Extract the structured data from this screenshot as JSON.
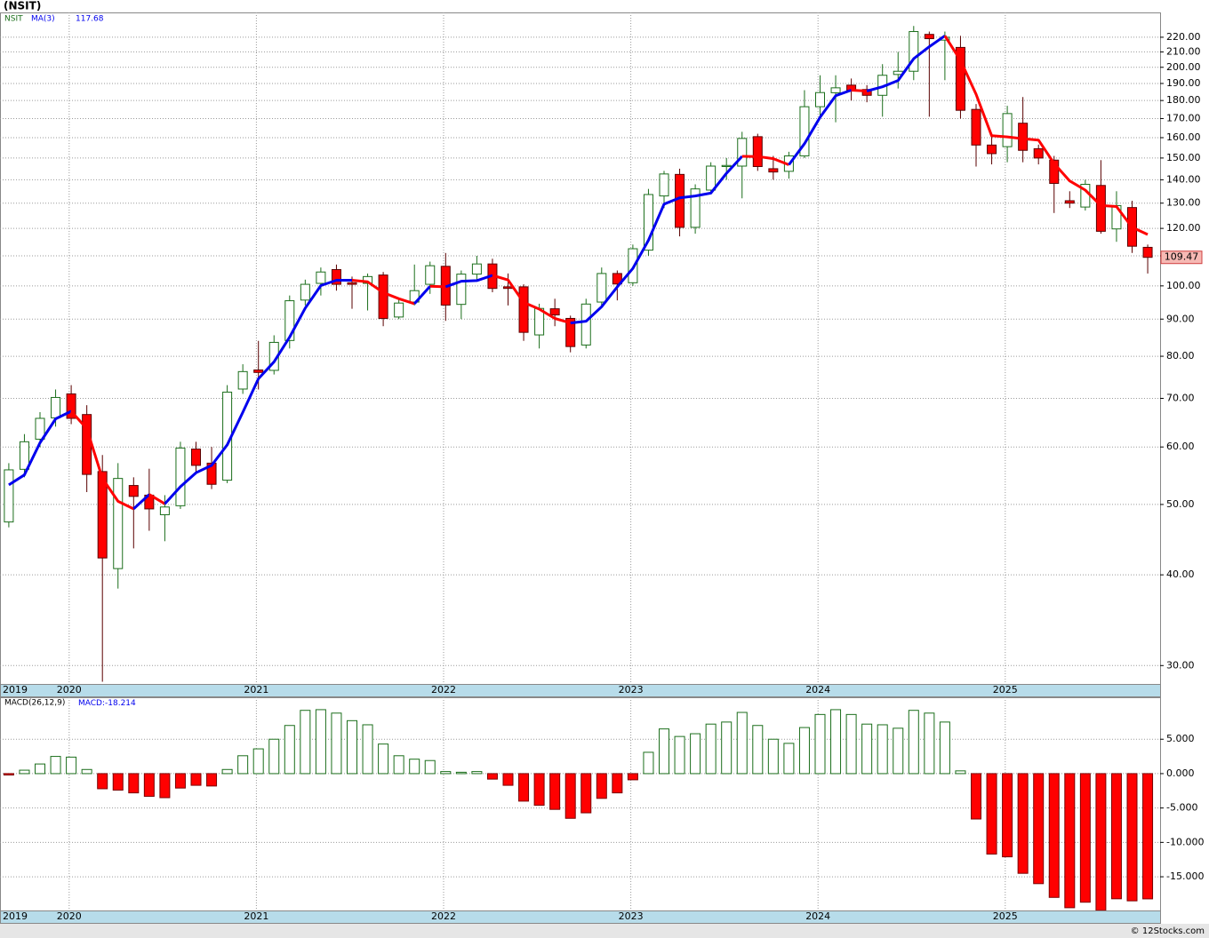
{
  "footer": "© 12Stocks.com",
  "chart_data": [
    {
      "type": "candlestick",
      "title": "(NSIT)",
      "symbol": "NSIT",
      "categories": [
        "2019",
        null,
        null,
        null,
        "2020",
        null,
        null,
        null,
        null,
        null,
        null,
        null,
        null,
        null,
        null,
        null,
        "2021",
        null,
        null,
        null,
        null,
        null,
        null,
        null,
        null,
        null,
        null,
        null,
        "2022",
        null,
        null,
        null,
        null,
        null,
        null,
        null,
        null,
        null,
        null,
        null,
        "2023",
        null,
        null,
        null,
        null,
        null,
        null,
        null,
        null,
        null,
        null,
        null,
        "2024",
        null,
        null,
        null,
        null,
        null,
        null,
        null,
        null,
        null,
        null,
        null,
        "2025",
        null,
        null,
        null,
        null,
        null,
        null,
        null,
        null,
        null
      ],
      "open": [
        47.3,
        55.9,
        61.5,
        65.8,
        71,
        66.5,
        55.5,
        40.8,
        53.1,
        51.5,
        48.4,
        49.8,
        59.6,
        57,
        54,
        72.1,
        76.6,
        76.5,
        84.1,
        95.6,
        100.8,
        105.3,
        101,
        100.8,
        103.5,
        90.6,
        95,
        100.5,
        106.4,
        94.3,
        103.8,
        107.2,
        99.7,
        99.7,
        85.6,
        93,
        90.2,
        82.9,
        95,
        104,
        101,
        112,
        133,
        142.4,
        120.4,
        135.5,
        146,
        146.2,
        160.5,
        145,
        143.8,
        151,
        176.5,
        184.5,
        189,
        186.4,
        183,
        195.5,
        197.5,
        222,
        218,
        213,
        175,
        156.3,
        155.5,
        167.5,
        154.5,
        149,
        131,
        128.4,
        137.5,
        119.8,
        128.2,
        113
      ],
      "high": [
        57,
        62.5,
        67,
        72,
        73,
        68.5,
        58.5,
        57,
        54.5,
        56,
        51.5,
        61,
        61,
        60,
        73,
        78,
        84,
        85.5,
        97,
        102,
        106,
        107,
        103,
        104,
        104.5,
        96,
        107,
        108,
        111,
        105,
        110,
        109,
        104,
        100.5,
        94.5,
        96,
        91,
        96,
        106,
        105,
        114,
        136,
        144,
        145,
        138,
        148,
        150,
        163,
        162,
        151,
        153,
        186,
        195,
        195,
        193,
        189,
        202,
        210,
        228,
        224,
        224,
        221,
        178,
        161,
        177,
        182,
        156.5,
        151,
        135,
        140,
        149,
        135,
        131,
        114
      ],
      "low": [
        46.5,
        54.5,
        60,
        64,
        64.5,
        52,
        28.5,
        38.3,
        43.5,
        46,
        44.5,
        49.3,
        55,
        52.5,
        53.5,
        71,
        72,
        75.5,
        82,
        94,
        97,
        98.5,
        93,
        92.5,
        88,
        90,
        94,
        97.5,
        89.5,
        90,
        102,
        98,
        94,
        84,
        82,
        88,
        81,
        82,
        93.5,
        95.5,
        100,
        110,
        128,
        117,
        118,
        134,
        140,
        132,
        144,
        140,
        140.5,
        150,
        170,
        168,
        180,
        179,
        171,
        187,
        192,
        171,
        192,
        170,
        146,
        147,
        148,
        148,
        147,
        126,
        128,
        127,
        118,
        115,
        111,
        104
      ],
      "close": [
        55.8,
        61,
        65.7,
        70.2,
        65.7,
        55,
        42.2,
        54.3,
        51.3,
        49.3,
        49.6,
        59.8,
        56.6,
        53.3,
        71.4,
        76.2,
        76,
        83.6,
        95.4,
        100.5,
        104.5,
        100.5,
        100.5,
        103,
        90.2,
        94.7,
        98.5,
        106.6,
        94.1,
        103.8,
        107.2,
        99.2,
        99.2,
        86.3,
        93.1,
        91.2,
        82.5,
        94.4,
        104,
        100.6,
        112.5,
        133.6,
        142.6,
        120.4,
        136,
        146.2,
        146.5,
        159.6,
        146,
        143.5,
        151,
        176.5,
        184.6,
        187.4,
        186,
        183,
        195,
        197.5,
        224,
        219,
        220,
        174.5,
        156.3,
        152.1,
        172.7,
        153.7,
        150,
        138.4,
        130,
        138,
        118.9,
        129,
        113.4,
        109.47
      ],
      "up_color": "#1b6e1b",
      "down_color": "#ff0000",
      "series": [
        {
          "name": "MA(3)",
          "color": "#0000ee",
          "down_color": "#ff0000",
          "values": [
            53.2,
            54.9,
            60.8,
            65.6,
            67.2,
            63.6,
            54.3,
            50.5,
            49.3,
            51.6,
            50.1,
            52.9,
            55.3,
            56.6,
            60.4,
            67,
            74.5,
            78.6,
            85,
            93.2,
            100.1,
            101.8,
            101.8,
            101.3,
            97.9,
            96,
            94.5,
            99.9,
            99.7,
            101.5,
            101.7,
            103.4,
            101.9,
            94.9,
            92.9,
            90.2,
            88.9,
            89.4,
            93.6,
            99.7,
            105.7,
            115.6,
            129.6,
            132.2,
            133,
            134.2,
            142.9,
            150.8,
            150.7,
            149.7,
            146.8,
            157,
            170.7,
            182.8,
            186,
            185.5,
            188,
            191.8,
            205.5,
            213.5,
            221,
            204.5,
            183.6,
            161,
            160.4,
            159.5,
            158.8,
            147.4,
            139.5,
            135.5,
            129,
            128.6,
            120.4,
            117.68
          ]
        }
      ],
      "log_scale": true,
      "grid": true,
      "ylim": [
        28.3,
        238
      ],
      "yticks": [
        {
          "value": 30,
          "label": "30.00"
        },
        {
          "value": 40,
          "label": "40.00"
        },
        {
          "value": 50,
          "label": "50.00"
        },
        {
          "value": 60,
          "label": "60.00"
        },
        {
          "value": 70,
          "label": "70.00"
        },
        {
          "value": 80,
          "label": "80.00"
        },
        {
          "value": 90,
          "label": "90.00"
        },
        {
          "value": 100,
          "label": "100.00"
        },
        {
          "value": 110,
          "label": "110.00"
        },
        {
          "value": 120,
          "label": "120.00"
        },
        {
          "value": 130,
          "label": "130.00"
        },
        {
          "value": 140,
          "label": "140.00"
        },
        {
          "value": 150,
          "label": "150.00"
        },
        {
          "value": 160,
          "label": "160.00"
        },
        {
          "value": 170,
          "label": "170.00"
        },
        {
          "value": 180,
          "label": "180.00"
        },
        {
          "value": 190,
          "label": "190.00"
        },
        {
          "value": 200,
          "label": "200.00"
        },
        {
          "value": 210,
          "label": "210.00"
        },
        {
          "value": 220,
          "label": "220.00"
        }
      ]
    },
    {
      "type": "bar",
      "title": "MACD(26,12,9)",
      "value_caption": "MACD:",
      "values": [
        -0.2,
        0.5,
        1.4,
        2.5,
        2.4,
        0.6,
        -2.2,
        -2.4,
        -2.8,
        -3.3,
        -3.5,
        -2.1,
        -1.7,
        -1.8,
        0.6,
        2.6,
        3.6,
        5,
        7,
        9.2,
        9.3,
        8.8,
        7.7,
        7.1,
        4.3,
        2.6,
        2.1,
        1.9,
        0.3,
        0.2,
        0.3,
        -0.8,
        -1.7,
        -4,
        -4.6,
        -5.2,
        -6.5,
        -5.7,
        -3.6,
        -2.8,
        -0.9,
        3.1,
        6.5,
        5.4,
        5.8,
        7.2,
        7.5,
        8.9,
        7,
        5,
        4.4,
        6.7,
        8.6,
        9.3,
        8.6,
        7.2,
        7.1,
        6.6,
        9.2,
        8.8,
        7.5,
        0.4,
        -6.6,
        -11.7,
        -12.1,
        -14.5,
        -16,
        -18,
        -19.5,
        -18.7,
        -19.9,
        -18.2,
        -18.5,
        -18.214
      ],
      "pos_color": "#1b6e1b",
      "neg_color": "#ff0000",
      "grid": true,
      "ylim": [
        -19.9,
        11.1
      ],
      "yticks": [
        {
          "value": 5,
          "label": "5.000"
        },
        {
          "value": 0,
          "label": "0.000"
        },
        {
          "value": -5,
          "label": "-5.000"
        },
        {
          "value": -10,
          "label": "-10.000"
        },
        {
          "value": -15,
          "label": "-15.000"
        }
      ]
    }
  ]
}
